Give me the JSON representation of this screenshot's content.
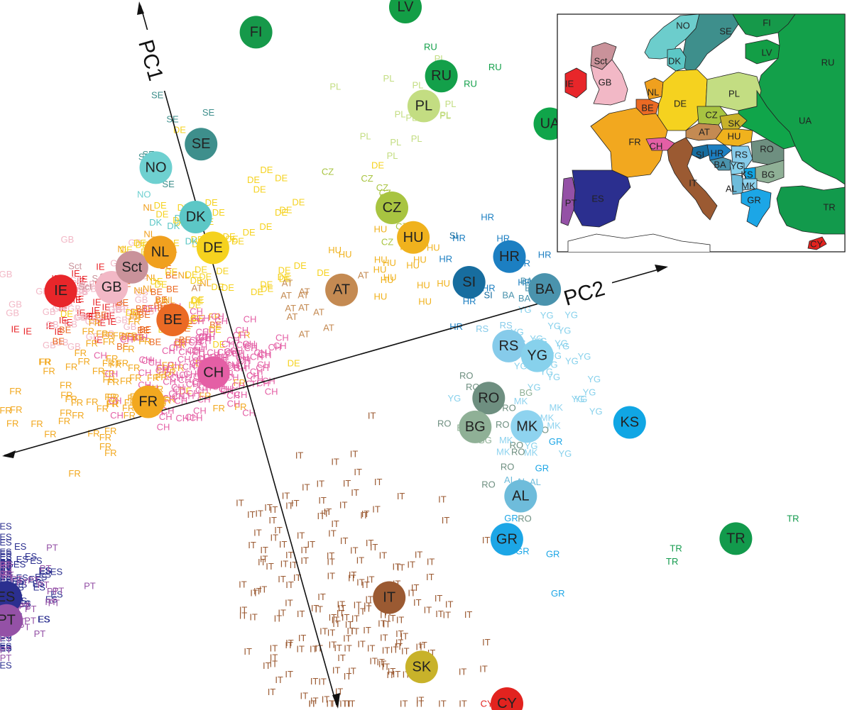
{
  "chart_data": {
    "type": "scatter",
    "axes": [
      {
        "name": "PC1"
      },
      {
        "name": "PC2"
      }
    ],
    "palette": {
      "IE": "#e8262a",
      "GB": "#f2b8c6",
      "Sct": "#c9929a",
      "NL": "#f0a01e",
      "BE": "#eb6a24",
      "DE": "#f5d21f",
      "DK": "#5cc7c6",
      "NO": "#6ed0d0",
      "SE": "#3e8f8c",
      "FI": "#16994a",
      "FR": "#f2a81f",
      "CH": "#e45fa5",
      "AT": "#c48a52",
      "CZ": "#a8c441",
      "HU": "#f0b21d",
      "PL": "#c3dd82",
      "RU": "#13a04a",
      "LV": "#139e46",
      "UA": "#10a54a",
      "HR": "#1c7fc2",
      "SI": "#176d9f",
      "BA": "#4a93ad",
      "RS": "#86cbea",
      "YG": "#87d1ec",
      "RO": "#6e8f80",
      "BG": "#8fb096",
      "MK": "#8ed3ef",
      "KS": "#10a6e4",
      "AL": "#6ebcdb",
      "GR": "#1ca6e6",
      "IT": "#9b5a32",
      "SK": "#c8b22a",
      "TR": "#129a4c",
      "CY": "#e2231f",
      "ES": "#2b2f8f",
      "PT": "#9451a6"
    },
    "centroids": [
      {
        "label": "IE",
        "pc2": -3.6,
        "pc1": 4.3
      },
      {
        "label": "GB",
        "pc2": -2.4,
        "pc1": 4.0
      },
      {
        "label": "Sct",
        "pc2": -1.8,
        "pc1": 4.4
      },
      {
        "label": "NL",
        "pc2": -1.05,
        "pc1": 4.6
      },
      {
        "label": "BE",
        "pc2": -1.2,
        "pc1": 2.6
      },
      {
        "label": "DE",
        "pc2": 0.2,
        "pc1": 4.3
      },
      {
        "label": "DK",
        "pc2": 0.0,
        "pc1": 5.3
      },
      {
        "label": "NO",
        "pc2": -0.6,
        "pc1": 7.0
      },
      {
        "label": "SE",
        "pc2": 0.6,
        "pc1": 7.3
      },
      {
        "label": "FI",
        "pc2": 2.6,
        "pc1": 10.0
      },
      {
        "label": "FR",
        "pc2": -2.3,
        "pc1": 0.5
      },
      {
        "label": "CH",
        "pc2": -0.6,
        "pc1": 0.8
      },
      {
        "label": "AT",
        "pc2": 2.9,
        "pc1": 2.1
      },
      {
        "label": "CZ",
        "pc2": 4.6,
        "pc1": 4.0
      },
      {
        "label": "HU",
        "pc2": 4.9,
        "pc1": 3.0
      },
      {
        "label": "PL",
        "pc2": 6.0,
        "pc1": 6.6
      },
      {
        "label": "RU",
        "pc2": 6.6,
        "pc1": 7.3
      },
      {
        "label": "LV",
        "pc2": 6.4,
        "pc1": 10.3
      },
      {
        "label": "UA",
        "pc2": 8.8,
        "pc1": 5.1
      },
      {
        "label": "HR",
        "pc2": 7.0,
        "pc1": 1.7
      },
      {
        "label": "SI",
        "pc2": 5.9,
        "pc1": 1.3
      },
      {
        "label": "BA",
        "pc2": 7.6,
        "pc1": 0.5
      },
      {
        "label": "RS",
        "pc2": 6.4,
        "pc1": -0.8
      },
      {
        "label": "YG",
        "pc2": 7.0,
        "pc1": -1.3
      },
      {
        "label": "RO",
        "pc2": 5.6,
        "pc1": -2.1
      },
      {
        "label": "BG",
        "pc2": 5.1,
        "pc1": -2.8
      },
      {
        "label": "MK",
        "pc2": 6.3,
        "pc1": -3.2
      },
      {
        "label": "KS",
        "pc2": 8.7,
        "pc1": -3.9
      },
      {
        "label": "AL",
        "pc2": 5.7,
        "pc1": -5.1
      },
      {
        "label": "GR",
        "pc2": 5.1,
        "pc1": -6.2
      },
      {
        "label": "IT",
        "pc2": 2.0,
        "pc1": -6.9
      },
      {
        "label": "SK",
        "pc2": 2.3,
        "pc1": -9.1
      },
      {
        "label": "TR",
        "pc2": 10.4,
        "pc1": -8.0
      },
      {
        "label": "CY",
        "pc2": 3.5,
        "pc1": -13.1
      },
      {
        "label": "ES",
        "pc2": -7.3,
        "pc1": -3.7
      },
      {
        "label": "PT",
        "pc2": -7.0,
        "pc1": -4.5
      }
    ],
    "sample_clusters": [
      {
        "label": "IE",
        "pc2": -3.3,
        "pc1": 3.8,
        "s2": 1.0,
        "s1": 0.8,
        "n": 32
      },
      {
        "label": "GB",
        "pc2": -3.1,
        "pc1": 3.8,
        "s2": 1.0,
        "s1": 1.0,
        "n": 55
      },
      {
        "label": "Sct",
        "pc2": -2.4,
        "pc1": 4.2,
        "s2": 0.8,
        "s1": 0.7,
        "n": 6
      },
      {
        "label": "NL",
        "pc2": -1.3,
        "pc1": 4.6,
        "s2": 0.8,
        "s1": 0.9,
        "n": 14
      },
      {
        "label": "BE",
        "pc2": -1.8,
        "pc1": 3.0,
        "s2": 1.2,
        "s1": 1.0,
        "n": 30
      },
      {
        "label": "DE",
        "pc2": 0.2,
        "pc1": 4.2,
        "s2": 1.8,
        "s1": 1.9,
        "n": 70
      },
      {
        "label": "DK",
        "pc2": -0.3,
        "pc1": 5.3,
        "s2": 0.6,
        "s1": 0.6,
        "n": 4
      },
      {
        "label": "NO",
        "pc2": -0.9,
        "pc1": 6.4,
        "s2": 0.6,
        "s1": 0.7,
        "n": 3
      },
      {
        "label": "SE",
        "pc2": 0.0,
        "pc1": 7.4,
        "s2": 0.9,
        "s1": 0.8,
        "n": 7
      },
      {
        "label": "FR",
        "pc2": -2.7,
        "pc1": 1.3,
        "s2": 1.6,
        "s1": 1.3,
        "n": 80
      },
      {
        "label": "CH",
        "pc2": -0.6,
        "pc1": 1.0,
        "s2": 1.3,
        "s1": 1.0,
        "n": 150
      },
      {
        "label": "AT",
        "pc2": 2.0,
        "pc1": 2.5,
        "s2": 1.2,
        "s1": 1.0,
        "n": 12
      },
      {
        "label": "CZ",
        "pc2": 4.2,
        "pc1": 4.2,
        "s2": 0.8,
        "s1": 0.8,
        "n": 8
      },
      {
        "label": "HU",
        "pc2": 4.6,
        "pc1": 2.6,
        "s2": 0.9,
        "s1": 1.2,
        "n": 16
      },
      {
        "label": "PL",
        "pc2": 5.6,
        "pc1": 6.5,
        "s2": 1.1,
        "s1": 1.0,
        "n": 14
      },
      {
        "label": "RU",
        "pc2": 6.8,
        "pc1": 7.6,
        "s2": 0.5,
        "s1": 0.7,
        "n": 5
      },
      {
        "label": "HR",
        "pc2": 6.5,
        "pc1": 1.5,
        "s2": 1.0,
        "s1": 1.5,
        "n": 10
      },
      {
        "label": "SI",
        "pc2": 6.1,
        "pc1": 1.6,
        "s2": 0.5,
        "s1": 0.5,
        "n": 3
      },
      {
        "label": "BA",
        "pc2": 7.4,
        "pc1": 0.6,
        "s2": 0.6,
        "s1": 0.6,
        "n": 7
      },
      {
        "label": "YG",
        "pc2": 7.2,
        "pc1": -1.8,
        "s2": 1.1,
        "s1": 1.6,
        "n": 28
      },
      {
        "label": "RS",
        "pc2": 6.6,
        "pc1": -1.0,
        "s2": 0.6,
        "s1": 0.8,
        "n": 6
      },
      {
        "label": "RO",
        "pc2": 5.8,
        "pc1": -2.8,
        "s2": 1.0,
        "s1": 1.2,
        "n": 14
      },
      {
        "label": "BG",
        "pc2": 5.2,
        "pc1": -2.7,
        "s2": 0.6,
        "s1": 0.6,
        "n": 3
      },
      {
        "label": "MK",
        "pc2": 6.2,
        "pc1": -3.0,
        "s2": 0.7,
        "s1": 0.8,
        "n": 8
      },
      {
        "label": "AL",
        "pc2": 6.0,
        "pc1": -5.0,
        "s2": 0.6,
        "s1": 0.6,
        "n": 4
      },
      {
        "label": "GR",
        "pc2": 6.2,
        "pc1": -6.0,
        "s2": 1.0,
        "s1": 1.5,
        "n": 6
      },
      {
        "label": "IT",
        "pc2": 1.0,
        "pc1": -6.6,
        "s2": 1.7,
        "s1": 2.6,
        "n": 190
      },
      {
        "label": "ES",
        "pc2": -7.2,
        "pc1": -3.6,
        "s2": 1.2,
        "s1": 0.9,
        "n": 130
      },
      {
        "label": "PT",
        "pc2": -7.0,
        "pc1": -4.1,
        "s2": 1.1,
        "s1": 0.9,
        "n": 55
      },
      {
        "label": "TR",
        "pc2": 10.6,
        "pc1": -7.6,
        "s2": 1.2,
        "s1": 1.0,
        "n": 4
      },
      {
        "label": "CY",
        "pc2": 3.6,
        "pc1": -12.0,
        "s2": 0.3,
        "s1": 0.3,
        "n": 2
      },
      {
        "label": "LV",
        "pc2": 6.4,
        "pc1": 10.3,
        "s2": 0.2,
        "s1": 0.2,
        "n": 0
      },
      {
        "label": "UA",
        "pc2": 8.8,
        "pc1": 5.1,
        "s2": 0.2,
        "s1": 0.2,
        "n": 0
      },
      {
        "label": "FI",
        "pc2": 2.6,
        "pc1": 10.0,
        "s2": 0.2,
        "s1": 0.2,
        "n": 0
      },
      {
        "label": "KS",
        "pc2": 8.7,
        "pc1": -3.9,
        "s2": 0.2,
        "s1": 0.2,
        "n": 0
      },
      {
        "label": "SK",
        "pc2": 2.3,
        "pc1": -9.1,
        "s2": 0.2,
        "s1": 0.2,
        "n": 0
      }
    ]
  },
  "inset_map": {
    "regions": [
      {
        "code": "NO"
      },
      {
        "code": "SE"
      },
      {
        "code": "FI"
      },
      {
        "code": "DK"
      },
      {
        "code": "LV"
      },
      {
        "code": "RU"
      },
      {
        "code": "Sct"
      },
      {
        "code": "GB"
      },
      {
        "code": "IE"
      },
      {
        "code": "NL"
      },
      {
        "code": "BE"
      },
      {
        "code": "DE"
      },
      {
        "code": "PL"
      },
      {
        "code": "UA"
      },
      {
        "code": "CZ"
      },
      {
        "code": "SK"
      },
      {
        "code": "AT"
      },
      {
        "code": "HU"
      },
      {
        "code": "FR"
      },
      {
        "code": "CH"
      },
      {
        "code": "SI"
      },
      {
        "code": "HR"
      },
      {
        "code": "RS"
      },
      {
        "code": "RO"
      },
      {
        "code": "BA"
      },
      {
        "code": "YG"
      },
      {
        "code": "KS"
      },
      {
        "code": "BG"
      },
      {
        "code": "IT"
      },
      {
        "code": "AL"
      },
      {
        "code": "MK"
      },
      {
        "code": "GR"
      },
      {
        "code": "ES"
      },
      {
        "code": "PT"
      },
      {
        "code": "TR"
      },
      {
        "code": "CY"
      }
    ]
  }
}
